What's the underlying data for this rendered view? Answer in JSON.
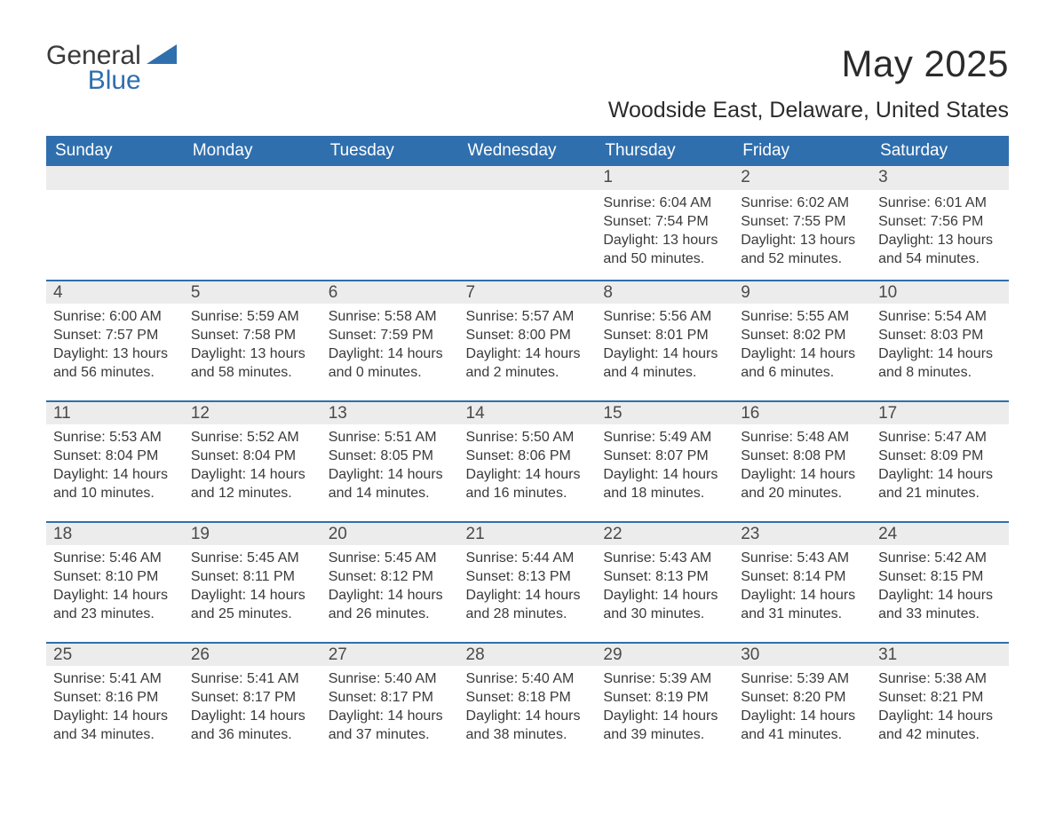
{
  "logo": {
    "word1": "General",
    "word2": "Blue"
  },
  "title": "May 2025",
  "location": "Woodside East, Delaware, United States",
  "colors": {
    "header_bg": "#2f6fae",
    "header_text": "#ffffff",
    "daynum_bg": "#ececec",
    "row_border": "#2f6fae",
    "body_text": "#3a3a3a",
    "page_bg": "#ffffff"
  },
  "weekdays": [
    "Sunday",
    "Monday",
    "Tuesday",
    "Wednesday",
    "Thursday",
    "Friday",
    "Saturday"
  ],
  "weeks": [
    [
      null,
      null,
      null,
      null,
      {
        "n": "1",
        "sunrise": "6:04 AM",
        "sunset": "7:54 PM",
        "daylight": "13 hours and 50 minutes."
      },
      {
        "n": "2",
        "sunrise": "6:02 AM",
        "sunset": "7:55 PM",
        "daylight": "13 hours and 52 minutes."
      },
      {
        "n": "3",
        "sunrise": "6:01 AM",
        "sunset": "7:56 PM",
        "daylight": "13 hours and 54 minutes."
      }
    ],
    [
      {
        "n": "4",
        "sunrise": "6:00 AM",
        "sunset": "7:57 PM",
        "daylight": "13 hours and 56 minutes."
      },
      {
        "n": "5",
        "sunrise": "5:59 AM",
        "sunset": "7:58 PM",
        "daylight": "13 hours and 58 minutes."
      },
      {
        "n": "6",
        "sunrise": "5:58 AM",
        "sunset": "7:59 PM",
        "daylight": "14 hours and 0 minutes."
      },
      {
        "n": "7",
        "sunrise": "5:57 AM",
        "sunset": "8:00 PM",
        "daylight": "14 hours and 2 minutes."
      },
      {
        "n": "8",
        "sunrise": "5:56 AM",
        "sunset": "8:01 PM",
        "daylight": "14 hours and 4 minutes."
      },
      {
        "n": "9",
        "sunrise": "5:55 AM",
        "sunset": "8:02 PM",
        "daylight": "14 hours and 6 minutes."
      },
      {
        "n": "10",
        "sunrise": "5:54 AM",
        "sunset": "8:03 PM",
        "daylight": "14 hours and 8 minutes."
      }
    ],
    [
      {
        "n": "11",
        "sunrise": "5:53 AM",
        "sunset": "8:04 PM",
        "daylight": "14 hours and 10 minutes."
      },
      {
        "n": "12",
        "sunrise": "5:52 AM",
        "sunset": "8:04 PM",
        "daylight": "14 hours and 12 minutes."
      },
      {
        "n": "13",
        "sunrise": "5:51 AM",
        "sunset": "8:05 PM",
        "daylight": "14 hours and 14 minutes."
      },
      {
        "n": "14",
        "sunrise": "5:50 AM",
        "sunset": "8:06 PM",
        "daylight": "14 hours and 16 minutes."
      },
      {
        "n": "15",
        "sunrise": "5:49 AM",
        "sunset": "8:07 PM",
        "daylight": "14 hours and 18 minutes."
      },
      {
        "n": "16",
        "sunrise": "5:48 AM",
        "sunset": "8:08 PM",
        "daylight": "14 hours and 20 minutes."
      },
      {
        "n": "17",
        "sunrise": "5:47 AM",
        "sunset": "8:09 PM",
        "daylight": "14 hours and 21 minutes."
      }
    ],
    [
      {
        "n": "18",
        "sunrise": "5:46 AM",
        "sunset": "8:10 PM",
        "daylight": "14 hours and 23 minutes."
      },
      {
        "n": "19",
        "sunrise": "5:45 AM",
        "sunset": "8:11 PM",
        "daylight": "14 hours and 25 minutes."
      },
      {
        "n": "20",
        "sunrise": "5:45 AM",
        "sunset": "8:12 PM",
        "daylight": "14 hours and 26 minutes."
      },
      {
        "n": "21",
        "sunrise": "5:44 AM",
        "sunset": "8:13 PM",
        "daylight": "14 hours and 28 minutes."
      },
      {
        "n": "22",
        "sunrise": "5:43 AM",
        "sunset": "8:13 PM",
        "daylight": "14 hours and 30 minutes."
      },
      {
        "n": "23",
        "sunrise": "5:43 AM",
        "sunset": "8:14 PM",
        "daylight": "14 hours and 31 minutes."
      },
      {
        "n": "24",
        "sunrise": "5:42 AM",
        "sunset": "8:15 PM",
        "daylight": "14 hours and 33 minutes."
      }
    ],
    [
      {
        "n": "25",
        "sunrise": "5:41 AM",
        "sunset": "8:16 PM",
        "daylight": "14 hours and 34 minutes."
      },
      {
        "n": "26",
        "sunrise": "5:41 AM",
        "sunset": "8:17 PM",
        "daylight": "14 hours and 36 minutes."
      },
      {
        "n": "27",
        "sunrise": "5:40 AM",
        "sunset": "8:17 PM",
        "daylight": "14 hours and 37 minutes."
      },
      {
        "n": "28",
        "sunrise": "5:40 AM",
        "sunset": "8:18 PM",
        "daylight": "14 hours and 38 minutes."
      },
      {
        "n": "29",
        "sunrise": "5:39 AM",
        "sunset": "8:19 PM",
        "daylight": "14 hours and 39 minutes."
      },
      {
        "n": "30",
        "sunrise": "5:39 AM",
        "sunset": "8:20 PM",
        "daylight": "14 hours and 41 minutes."
      },
      {
        "n": "31",
        "sunrise": "5:38 AM",
        "sunset": "8:21 PM",
        "daylight": "14 hours and 42 minutes."
      }
    ]
  ],
  "labels": {
    "sunrise": "Sunrise: ",
    "sunset": "Sunset: ",
    "daylight": "Daylight: "
  }
}
